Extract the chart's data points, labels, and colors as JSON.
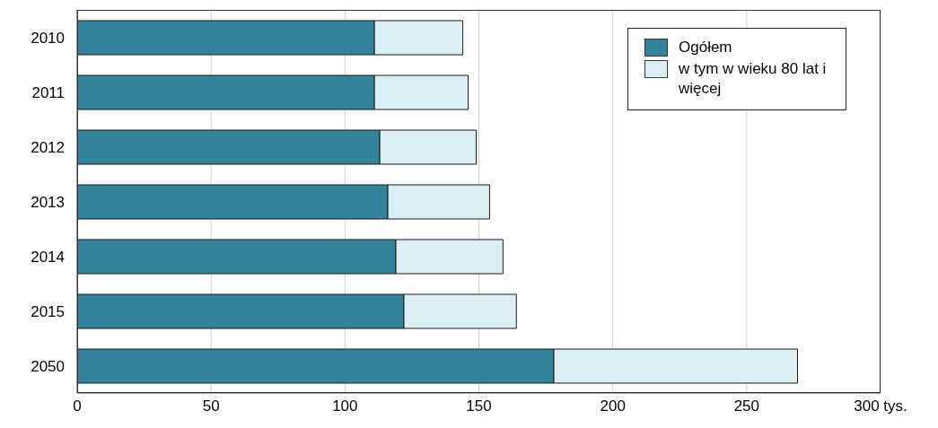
{
  "chart_data": {
    "type": "bar",
    "orientation": "horizontal",
    "stacked": true,
    "categories": [
      "2010",
      "2011",
      "2012",
      "2013",
      "2014",
      "2015",
      "2050"
    ],
    "series": [
      {
        "name": "Ogółem",
        "color": "#31849b",
        "values": [
          111,
          111,
          113,
          116,
          119,
          122,
          178
        ]
      },
      {
        "name": "w tym w wieku 80 lat i więcej",
        "color": "#daeef3",
        "values": [
          33,
          35,
          36,
          38,
          40,
          42,
          91
        ]
      }
    ],
    "xlim": [
      0,
      300
    ],
    "xticks": [
      0,
      50,
      100,
      150,
      200,
      250,
      {
        "value": 300,
        "label": "300 tys."
      }
    ],
    "grid": "x",
    "legend": "top right"
  }
}
